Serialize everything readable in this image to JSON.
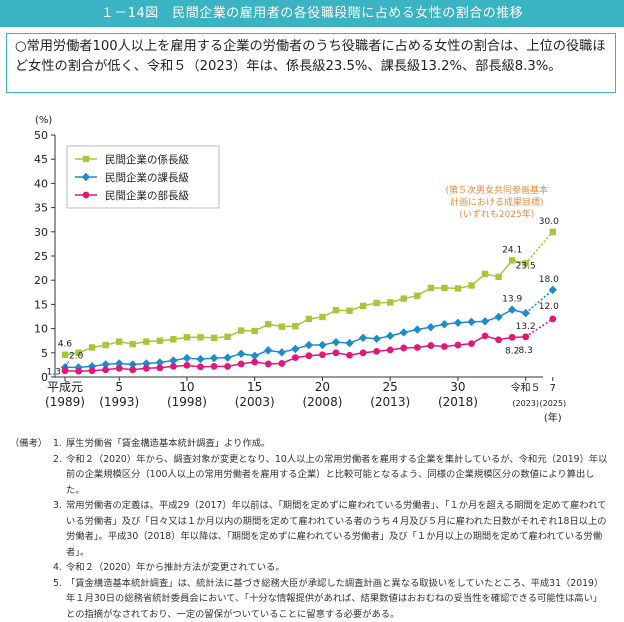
{
  "header": {
    "title": "１－14図　民間企業の雇用者の各役職段階に占める女性の割合の推移"
  },
  "summary": {
    "text": "○常用労働者100人以上を雇用する企業の労働者のうち役職者に占める女性の割合は、上位の役職ほど女性の割合が低く、令和５（2023）年は、係長級23.5%、課長級13.2%、部長級8.3%。"
  },
  "chart_data": {
    "type": "line",
    "ylabel": "(%)",
    "xlabel": "(年)",
    "ylim": [
      0,
      50
    ],
    "yticks": [
      0,
      5,
      10,
      15,
      20,
      25,
      30,
      35,
      40,
      45,
      50
    ],
    "x": [
      1989,
      1990,
      1991,
      1992,
      1993,
      1994,
      1995,
      1996,
      1997,
      1998,
      1999,
      2000,
      2001,
      2002,
      2003,
      2004,
      2005,
      2006,
      2007,
      2008,
      2009,
      2010,
      2011,
      2012,
      2013,
      2014,
      2015,
      2016,
      2017,
      2018,
      2019,
      2020,
      2021,
      2022,
      2023
    ],
    "xticks": [
      {
        "x": 1989,
        "label": "平成元",
        "sub": "(1989)"
      },
      {
        "x": 1993,
        "label": "5",
        "sub": "(1993)"
      },
      {
        "x": 1998,
        "label": "10",
        "sub": "(1998)"
      },
      {
        "x": 2003,
        "label": "15",
        "sub": "(2003)"
      },
      {
        "x": 2008,
        "label": "20",
        "sub": "(2008)"
      },
      {
        "x": 2013,
        "label": "25",
        "sub": "(2013)"
      },
      {
        "x": 2018,
        "label": "30",
        "sub": "(2018)"
      },
      {
        "x": 2023,
        "label": "令和５",
        "sub": "(2023)"
      },
      {
        "x": 2025,
        "label": "7",
        "sub": "(2025)"
      }
    ],
    "series": [
      {
        "name": "民間企業の係長級",
        "color": "#a5c838",
        "marker": "square",
        "values": [
          4.6,
          5.0,
          6.1,
          6.6,
          7.3,
          6.8,
          7.3,
          7.5,
          7.8,
          8.2,
          8.2,
          8.1,
          8.3,
          9.6,
          9.5,
          10.9,
          10.4,
          10.5,
          12.0,
          12.4,
          13.8,
          13.7,
          14.7,
          15.3,
          15.4,
          16.2,
          16.8,
          18.4,
          18.4,
          18.3,
          18.9,
          21.3,
          20.7,
          24.1,
          23.5
        ],
        "target": {
          "x": 2025,
          "value": 30.0
        }
      },
      {
        "name": "民間企業の課長級",
        "color": "#1e8ccc",
        "marker": "diamond",
        "values": [
          2.0,
          2.0,
          2.2,
          2.6,
          2.8,
          2.6,
          2.8,
          3.0,
          3.4,
          3.9,
          3.7,
          3.9,
          4.0,
          4.8,
          4.4,
          5.5,
          5.1,
          5.8,
          6.6,
          6.6,
          7.2,
          7.0,
          8.1,
          7.9,
          8.5,
          9.2,
          9.8,
          10.3,
          10.9,
          11.2,
          11.4,
          11.5,
          12.4,
          13.9,
          13.2
        ],
        "target": {
          "x": 2025,
          "value": 18.0
        }
      },
      {
        "name": "民間企業の部長級",
        "color": "#e1177c",
        "marker": "circle",
        "values": [
          1.3,
          1.2,
          1.3,
          1.5,
          1.8,
          1.5,
          1.8,
          1.9,
          2.2,
          2.4,
          2.1,
          2.2,
          2.2,
          2.7,
          3.1,
          2.7,
          2.8,
          4.0,
          4.4,
          4.6,
          5.0,
          4.5,
          5.0,
          5.3,
          5.6,
          6.0,
          6.1,
          6.5,
          6.3,
          6.6,
          6.9,
          8.5,
          7.7,
          8.2,
          8.3
        ],
        "target": {
          "x": 2025,
          "value": 12.0
        }
      }
    ],
    "data_labels": [
      {
        "series": 0,
        "x": 1989,
        "text": "4.6"
      },
      {
        "series": 1,
        "x": 1989,
        "text": "2.0"
      },
      {
        "series": 2,
        "x": 1989,
        "text": "1.3"
      },
      {
        "series": 0,
        "x": 2022,
        "text": "24.1"
      },
      {
        "series": 0,
        "x": 2023,
        "text": "23.5"
      },
      {
        "series": 0,
        "x": 2025,
        "text": "30.0"
      },
      {
        "series": 1,
        "x": 2022,
        "text": "13.9"
      },
      {
        "series": 1,
        "x": 2023,
        "text": "13.2"
      },
      {
        "series": 1,
        "x": 2025,
        "text": "18.0"
      },
      {
        "series": 2,
        "x": 2022,
        "text": "8.2"
      },
      {
        "series": 2,
        "x": 2023,
        "text": "8.3"
      },
      {
        "series": 2,
        "x": 2025,
        "text": "12.0"
      }
    ],
    "annotation": [
      "(第５次男女共同参画基本",
      "計画における成果目標)",
      "(いずれも2025年)"
    ],
    "annotation_color": "#f08a3c",
    "legend_position": "top-left"
  },
  "notes": {
    "heading": "（備考）",
    "items": [
      {
        "num": "1.",
        "text": "厚生労働省「賃金構造基本統計調査」より作成。"
      },
      {
        "num": "2.",
        "text": "令和２（2020）年から、調査対象が変更となり、10人以上の常用労働者を雇用する企業を集計しているが、令和元（2019）年以前の企業規模区分（100人以上の常用労働者を雇用する企業）と比較可能となるよう、同様の企業規模区分の数値により算出した。"
      },
      {
        "num": "3.",
        "text": "常用労働者の定義は、平成29（2017）年以前は、「期間を定めずに雇われている労働者」、「１か月を超える期間を定めて雇われている労働者」及び「日々又は１か月以内の期間を定めて雇われている者のうち４月及び５月に雇われた日数がそれぞれ18日以上の労働者」。平成30（2018）年以降は、「期間を定めずに雇われている労働者」及び「１か月以上の期間を定めて雇われている労働者」。"
      },
      {
        "num": "4.",
        "text": "令和２（2020）年から推計方法が変更されている。"
      },
      {
        "num": "5.",
        "text": "「賃金構造基本統計調査」は、統計法に基づき総務大臣が承認した調査計画と異なる取扱いをしていたところ、平成31（2019）年１月30日の総務省統計委員会において、「十分な情報提供があれば、結果数値はおおむねの妥当性を確認できる可能性は高い」との指摘がなされており、一定の留保がついていることに留意する必要がある。"
      }
    ]
  }
}
